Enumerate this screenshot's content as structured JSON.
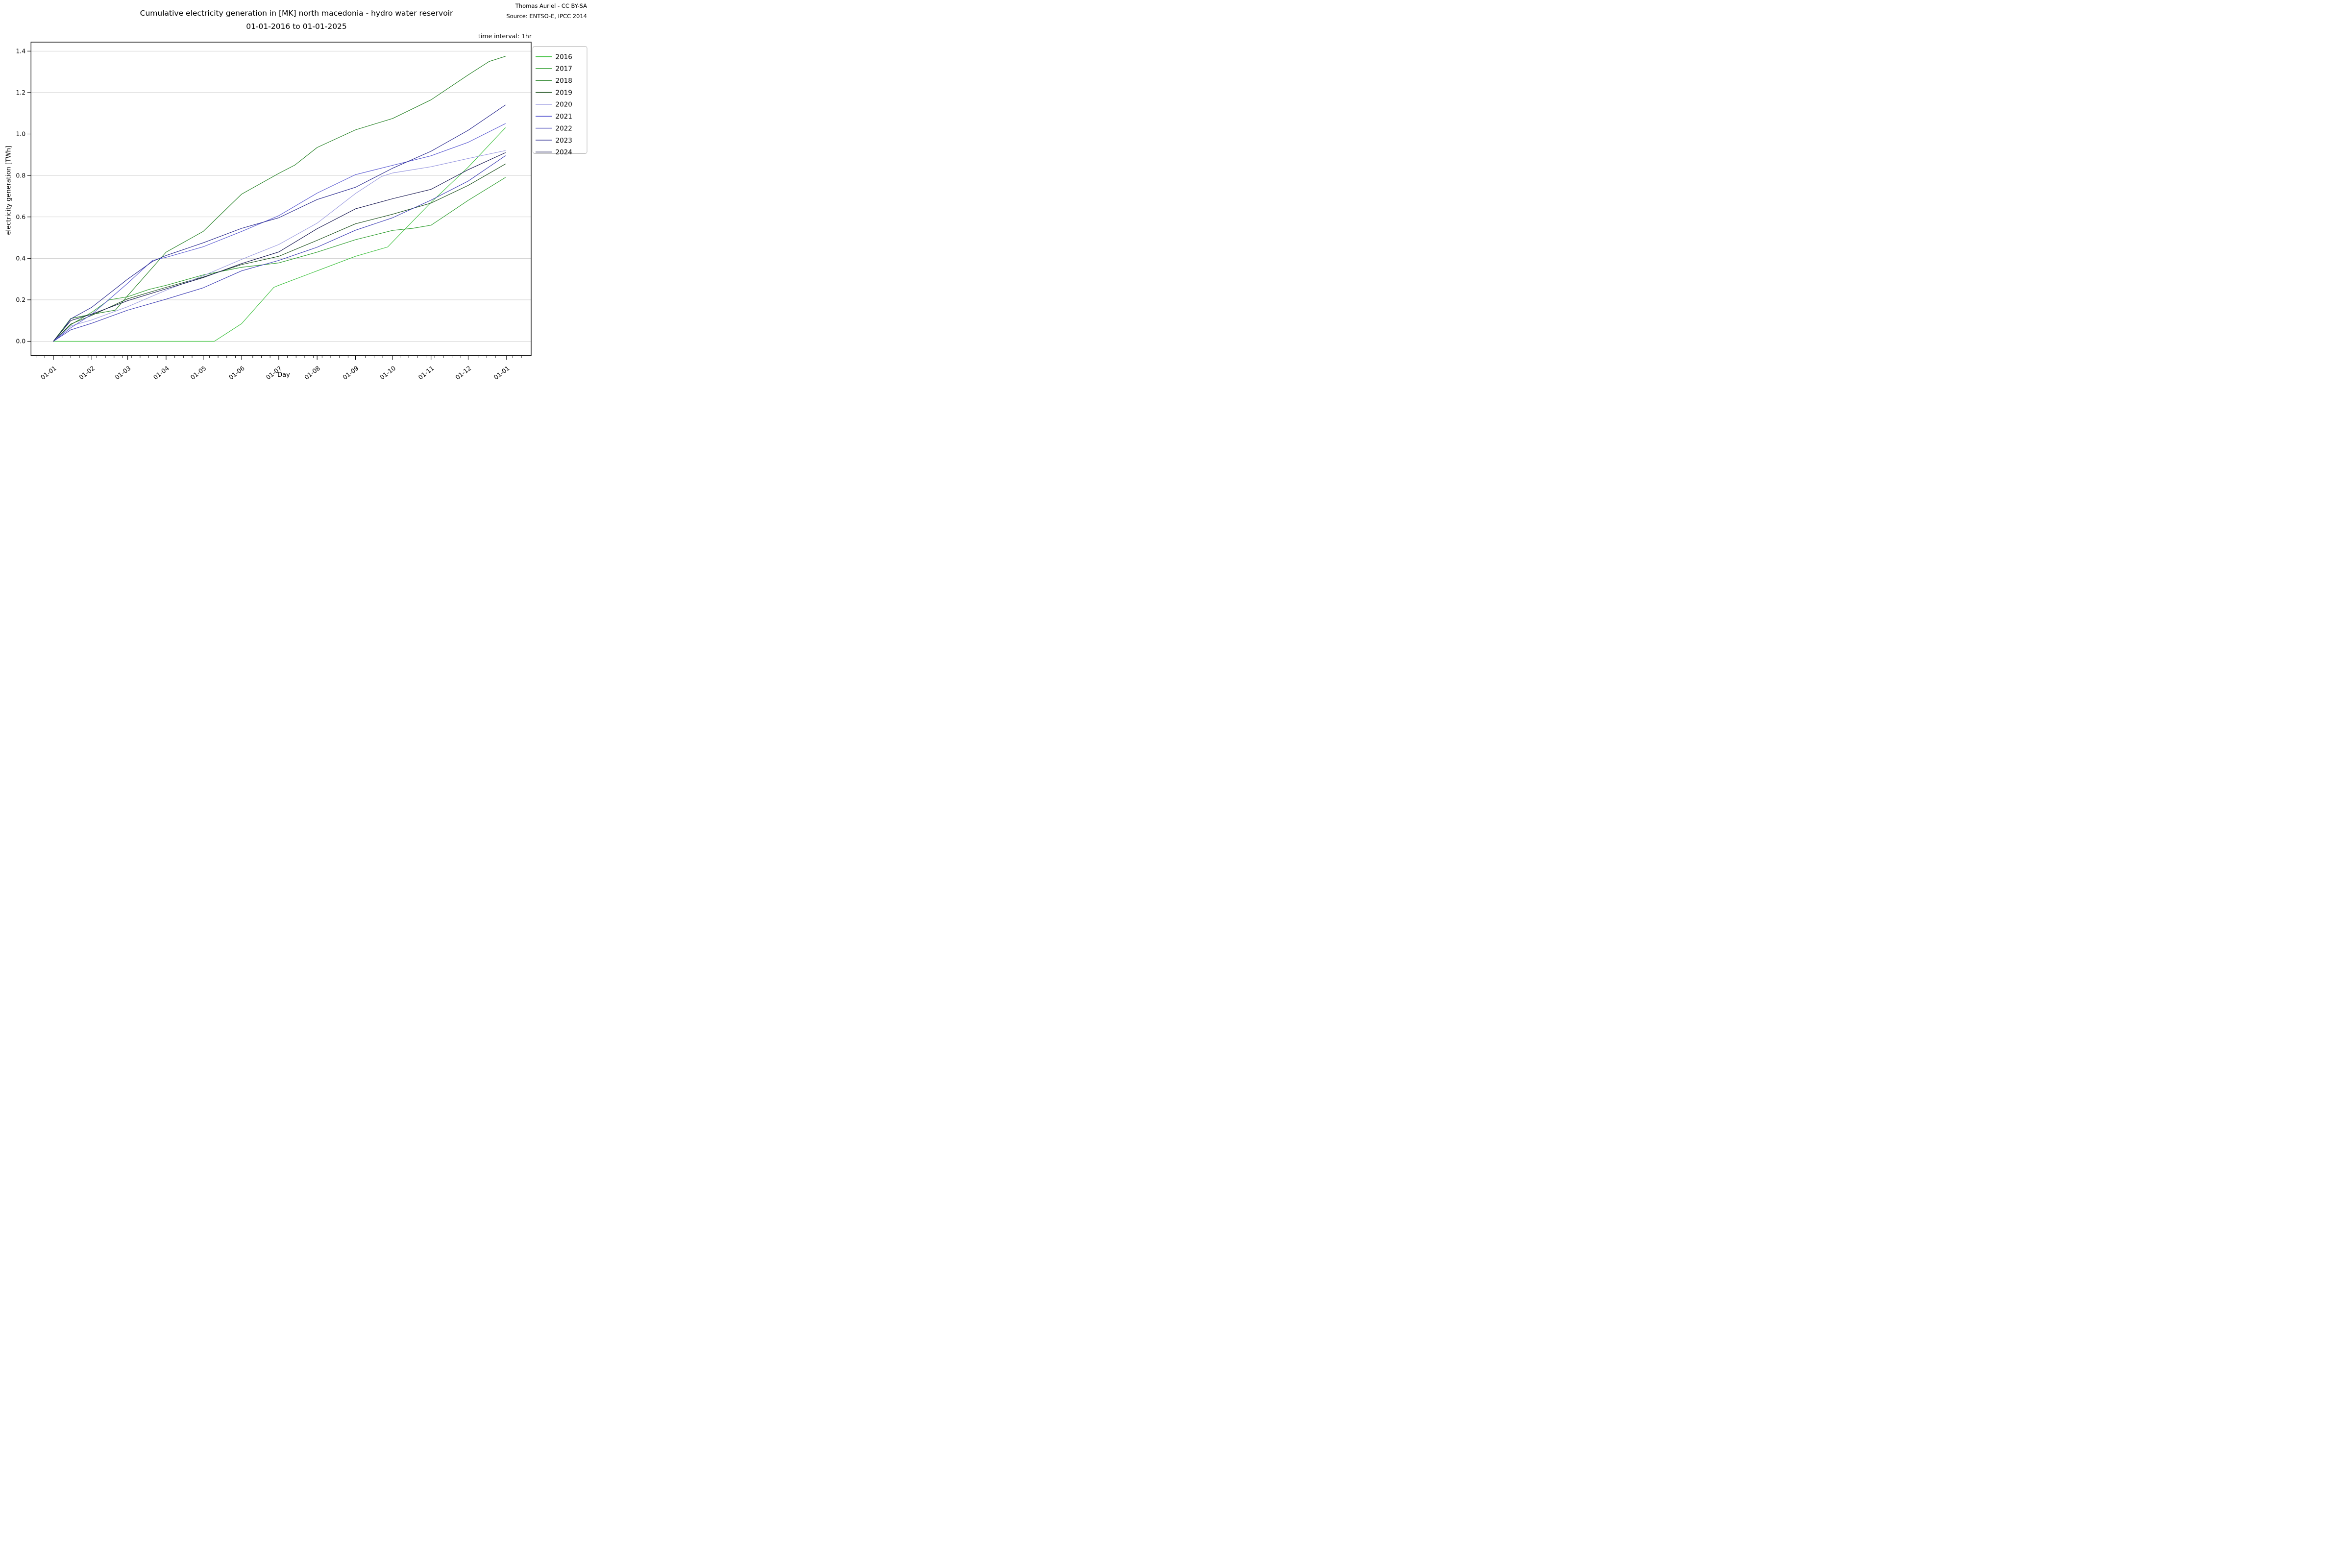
{
  "figure": {
    "title_line1": "Cumulative electricity generation in [MK] north macedonia - hydro water reservoir",
    "title_line2": "01-01-2016 to 01-01-2025",
    "author": "Thomas Auriel - CC BY-SA",
    "source": "Source: ENTSO-E, IPCC 2014",
    "annotation": "time interval: 1hr"
  },
  "chart_data": {
    "type": "line",
    "title": "Cumulative electricity generation in [MK] north macedonia - hydro water reservoir 01-01-2016 to 01-01-2025",
    "xlabel": "Day",
    "ylabel": "electricity generation [TWh]",
    "grid": "horizontal",
    "legend_position": "outside upper right",
    "ylim": [
      -0.055,
      1.435
    ],
    "xlim_days": [
      -18,
      384
    ],
    "y_tick_labels": [
      "0.0",
      "0.2",
      "0.4",
      "0.6",
      "0.8",
      "1.0",
      "1.2",
      "1.4"
    ],
    "y_tick_values": [
      0.0,
      0.2,
      0.4,
      0.6,
      0.8,
      1.0,
      1.2,
      1.4
    ],
    "x_ticks": [
      {
        "day": 0,
        "label": "01-01"
      },
      {
        "day": 31,
        "label": "01-02"
      },
      {
        "day": 60,
        "label": "01-03"
      },
      {
        "day": 91,
        "label": "01-04"
      },
      {
        "day": 121,
        "label": "01-05"
      },
      {
        "day": 152,
        "label": "01-06"
      },
      {
        "day": 182,
        "label": "01-07"
      },
      {
        "day": 213,
        "label": "01-08"
      },
      {
        "day": 244,
        "label": "01-09"
      },
      {
        "day": 274,
        "label": "01-10"
      },
      {
        "day": 305,
        "label": "01-11"
      },
      {
        "day": 335,
        "label": "01-12"
      },
      {
        "day": 366,
        "label": "01-01"
      }
    ],
    "series": [
      {
        "name": "2016",
        "color": "#3ec13e",
        "points": [
          [
            0,
            0
          ],
          [
            31,
            0
          ],
          [
            60,
            0
          ],
          [
            91,
            0
          ],
          [
            121,
            0
          ],
          [
            130,
            0
          ],
          [
            152,
            0.085
          ],
          [
            178,
            0.26
          ],
          [
            182,
            0.27
          ],
          [
            213,
            0.34
          ],
          [
            244,
            0.41
          ],
          [
            270,
            0.455
          ],
          [
            274,
            0.48
          ],
          [
            305,
            0.67
          ],
          [
            335,
            0.84
          ],
          [
            365,
            1.03
          ]
        ]
      },
      {
        "name": "2017",
        "color": "#2f9e2f",
        "points": [
          [
            0,
            0
          ],
          [
            14,
            0.08
          ],
          [
            31,
            0.14
          ],
          [
            45,
            0.2
          ],
          [
            60,
            0.215
          ],
          [
            77,
            0.25
          ],
          [
            91,
            0.27
          ],
          [
            121,
            0.32
          ],
          [
            152,
            0.357
          ],
          [
            182,
            0.378
          ],
          [
            213,
            0.43
          ],
          [
            244,
            0.49
          ],
          [
            274,
            0.535
          ],
          [
            290,
            0.545
          ],
          [
            305,
            0.56
          ],
          [
            335,
            0.68
          ],
          [
            365,
            0.79
          ]
        ]
      },
      {
        "name": "2018",
        "color": "#238023",
        "points": [
          [
            0,
            0
          ],
          [
            14,
            0.11
          ],
          [
            31,
            0.13
          ],
          [
            50,
            0.15
          ],
          [
            60,
            0.22
          ],
          [
            91,
            0.43
          ],
          [
            121,
            0.53
          ],
          [
            152,
            0.71
          ],
          [
            182,
            0.81
          ],
          [
            195,
            0.85
          ],
          [
            213,
            0.935
          ],
          [
            244,
            1.02
          ],
          [
            274,
            1.075
          ],
          [
            305,
            1.165
          ],
          [
            335,
            1.285
          ],
          [
            352,
            1.35
          ],
          [
            365,
            1.375
          ]
        ]
      },
      {
        "name": "2019",
        "color": "#1b4f1b",
        "points": [
          [
            0,
            0
          ],
          [
            14,
            0.083
          ],
          [
            31,
            0.125
          ],
          [
            60,
            0.205
          ],
          [
            91,
            0.26
          ],
          [
            121,
            0.31
          ],
          [
            152,
            0.37
          ],
          [
            182,
            0.41
          ],
          [
            213,
            0.487
          ],
          [
            244,
            0.567
          ],
          [
            274,
            0.613
          ],
          [
            305,
            0.667
          ],
          [
            335,
            0.752
          ],
          [
            365,
            0.855
          ]
        ]
      },
      {
        "name": "2020",
        "color": "#9a9ae0",
        "points": [
          [
            0,
            0
          ],
          [
            14,
            0.074
          ],
          [
            31,
            0.103
          ],
          [
            60,
            0.167
          ],
          [
            91,
            0.246
          ],
          [
            121,
            0.316
          ],
          [
            152,
            0.395
          ],
          [
            182,
            0.467
          ],
          [
            213,
            0.57
          ],
          [
            244,
            0.713
          ],
          [
            265,
            0.795
          ],
          [
            274,
            0.812
          ],
          [
            305,
            0.842
          ],
          [
            335,
            0.882
          ],
          [
            365,
            0.92
          ]
        ]
      },
      {
        "name": "2021",
        "color": "#5a5ad2",
        "points": [
          [
            0,
            0
          ],
          [
            14,
            0.065
          ],
          [
            31,
            0.13
          ],
          [
            60,
            0.28
          ],
          [
            80,
            0.39
          ],
          [
            91,
            0.405
          ],
          [
            121,
            0.456
          ],
          [
            152,
            0.53
          ],
          [
            182,
            0.606
          ],
          [
            213,
            0.715
          ],
          [
            244,
            0.804
          ],
          [
            274,
            0.849
          ],
          [
            305,
            0.895
          ],
          [
            335,
            0.96
          ],
          [
            365,
            1.05
          ]
        ]
      },
      {
        "name": "2022",
        "color": "#3c3cb4",
        "points": [
          [
            0,
            0
          ],
          [
            14,
            0.055
          ],
          [
            31,
            0.087
          ],
          [
            60,
            0.15
          ],
          [
            91,
            0.203
          ],
          [
            121,
            0.258
          ],
          [
            152,
            0.34
          ],
          [
            182,
            0.39
          ],
          [
            213,
            0.454
          ],
          [
            244,
            0.536
          ],
          [
            274,
            0.596
          ],
          [
            305,
            0.681
          ],
          [
            335,
            0.773
          ],
          [
            365,
            0.895
          ]
        ]
      },
      {
        "name": "2023",
        "color": "#28288f",
        "points": [
          [
            0,
            0
          ],
          [
            7,
            0.05
          ],
          [
            14,
            0.108
          ],
          [
            31,
            0.164
          ],
          [
            60,
            0.3
          ],
          [
            80,
            0.385
          ],
          [
            91,
            0.414
          ],
          [
            121,
            0.475
          ],
          [
            152,
            0.545
          ],
          [
            182,
            0.596
          ],
          [
            213,
            0.684
          ],
          [
            244,
            0.743
          ],
          [
            274,
            0.835
          ],
          [
            305,
            0.917
          ],
          [
            335,
            1.018
          ],
          [
            365,
            1.14
          ]
        ]
      },
      {
        "name": "2024",
        "color": "#161650",
        "points": [
          [
            0,
            0
          ],
          [
            14,
            0.1
          ],
          [
            31,
            0.131
          ],
          [
            60,
            0.196
          ],
          [
            91,
            0.253
          ],
          [
            121,
            0.307
          ],
          [
            152,
            0.375
          ],
          [
            182,
            0.431
          ],
          [
            213,
            0.543
          ],
          [
            244,
            0.639
          ],
          [
            274,
            0.688
          ],
          [
            305,
            0.733
          ],
          [
            335,
            0.828
          ],
          [
            365,
            0.91
          ]
        ]
      }
    ]
  }
}
